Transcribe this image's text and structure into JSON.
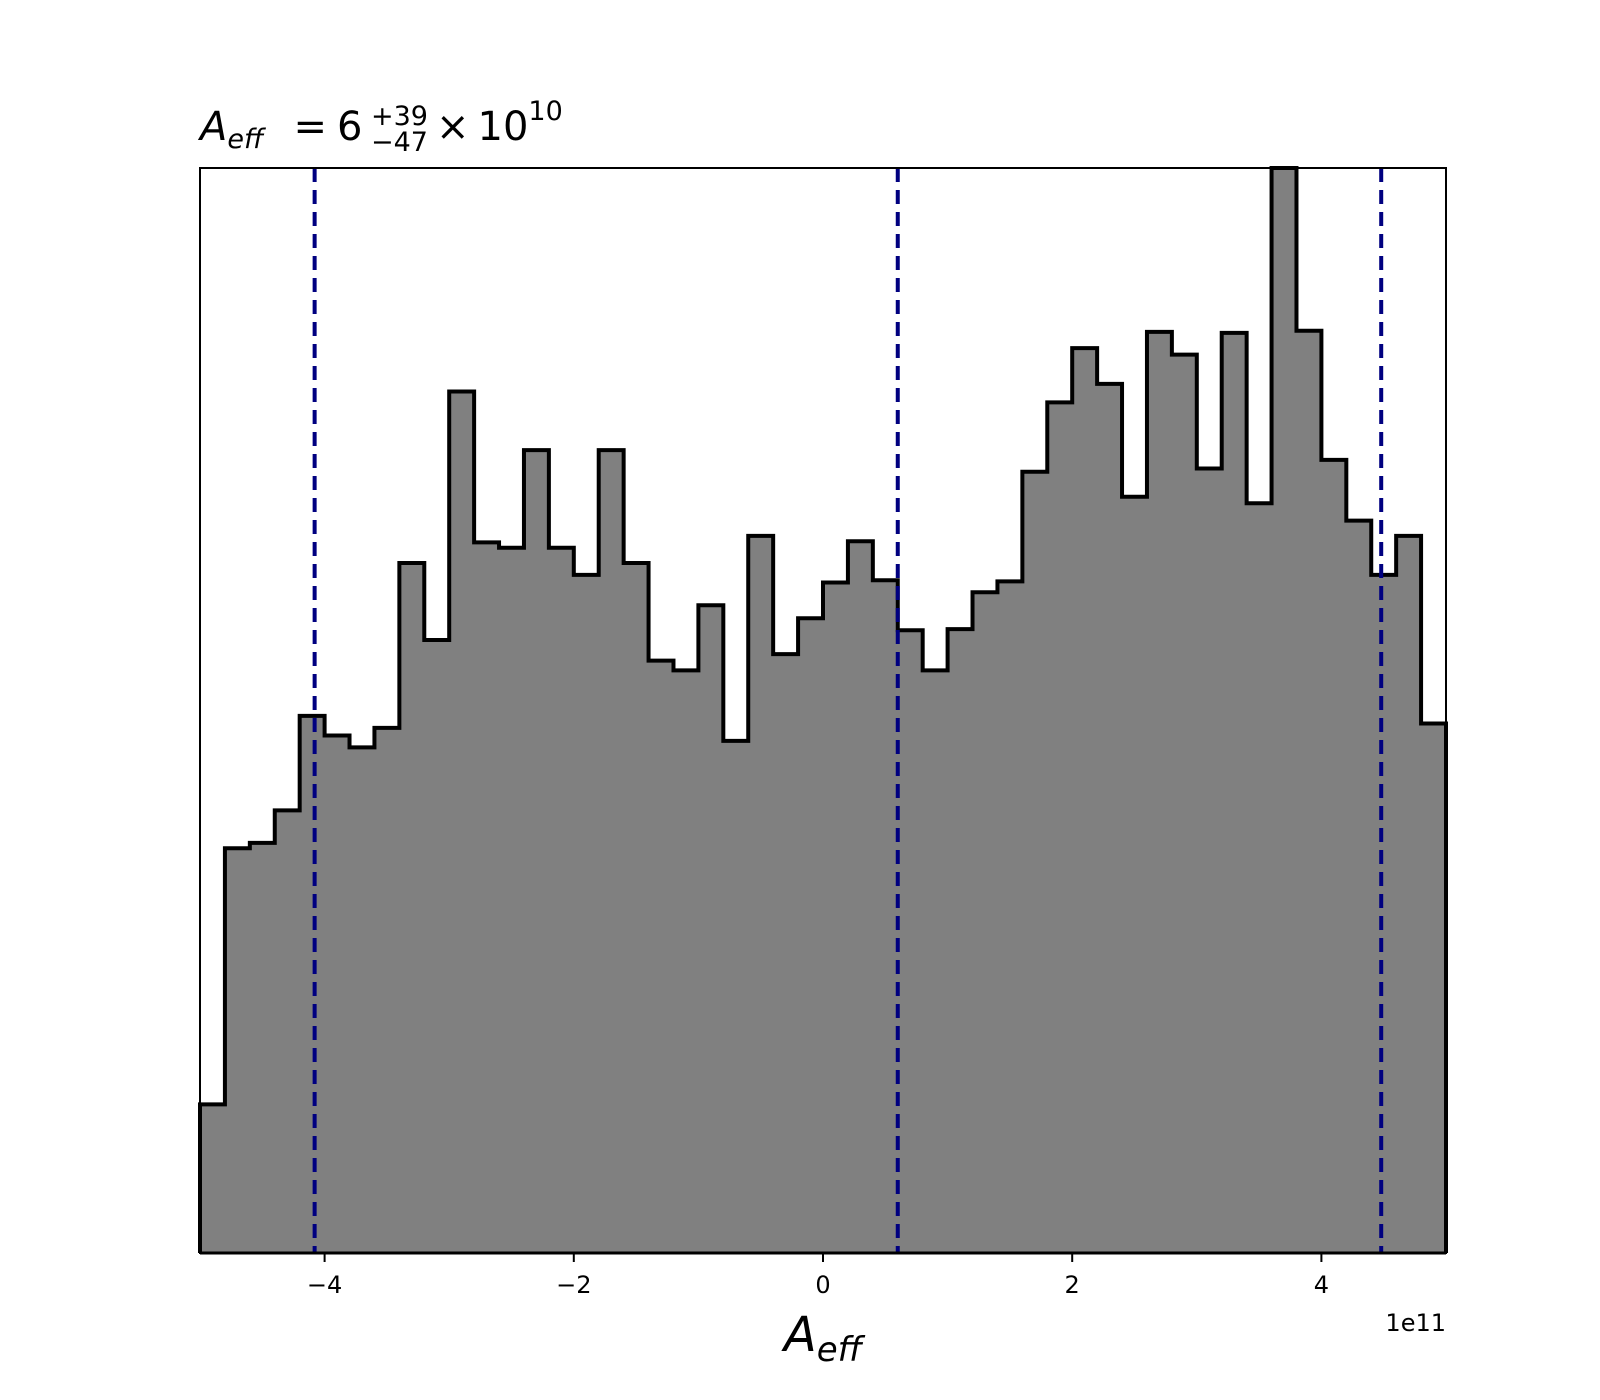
{
  "chart_data": {
    "type": "histogram",
    "title": {
      "symbol": "A",
      "symbol_sub": "eff",
      "equals": "=",
      "mantissa": "6",
      "plus_err": "+39",
      "minus_err": "−47",
      "times": "×",
      "base": "10",
      "exponent": "10"
    },
    "xlabel": {
      "symbol": "A",
      "sub": "eff"
    },
    "x_offset_text": "1e11",
    "xlim": [
      -5.0,
      5.0
    ],
    "ylim": [
      0,
      1
    ],
    "x_ticks": [
      -4,
      -2,
      0,
      2,
      4
    ],
    "x_tick_labels": [
      "−4",
      "−2",
      "0",
      "2",
      "4"
    ],
    "y_axis_visible": false,
    "bin_edges": [
      -5.0,
      -4.8,
      -4.6,
      -4.4,
      -4.2,
      -4.0,
      -3.8,
      -3.6,
      -3.4,
      -3.2,
      -3.0,
      -2.8,
      -2.6,
      -2.4,
      -2.2,
      -2.0,
      -1.8,
      -1.6,
      -1.4,
      -1.2,
      -1.0,
      -0.8,
      -0.6,
      -0.4,
      -0.2,
      0.0,
      0.2,
      0.4,
      0.6,
      0.8,
      1.0,
      1.2,
      1.4,
      1.6,
      1.8,
      2.0,
      2.2,
      2.4,
      2.6,
      2.8,
      3.0,
      3.2,
      3.4,
      3.6,
      3.8,
      4.0,
      4.2,
      4.4,
      4.6,
      4.8,
      5.0
    ],
    "counts": [
      0.137,
      0.373,
      0.378,
      0.408,
      0.495,
      0.477,
      0.466,
      0.484,
      0.636,
      0.565,
      0.794,
      0.655,
      0.65,
      0.74,
      0.65,
      0.625,
      0.74,
      0.636,
      0.546,
      0.537,
      0.597,
      0.472,
      0.661,
      0.552,
      0.585,
      0.618,
      0.656,
      0.62,
      0.574,
      0.537,
      0.575,
      0.609,
      0.619,
      0.72,
      0.784,
      0.834,
      0.801,
      0.697,
      0.849,
      0.828,
      0.723,
      0.848,
      0.691,
      1.0,
      0.85,
      0.731,
      0.675,
      0.625,
      0.661,
      0.488
    ],
    "fill_color": "#808080",
    "edge_color": "#000000",
    "vlines": {
      "x": [
        -4.08,
        0.6,
        4.48
      ],
      "color": "#000080",
      "style": "dashed"
    }
  }
}
